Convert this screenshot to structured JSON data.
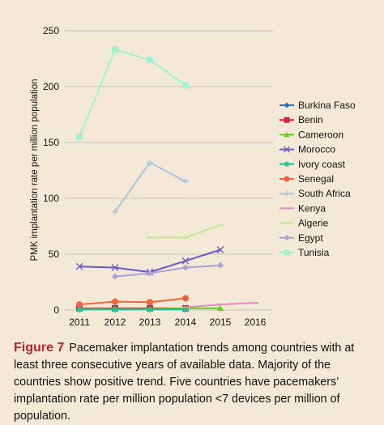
{
  "caption": {
    "label": "Figure 7",
    "text": "Pacemaker implantation trends among countries with at least three consecutive years of available data. Majority of the countries show positive trend. Five countries have pacemakers’ implantation rate per million population <7 devices per million of population."
  },
  "chart_data": {
    "type": "line",
    "title": "",
    "xlabel": "",
    "ylabel": "PMK implantation rate per million population",
    "xlim": [
      2011,
      2016
    ],
    "ylim": [
      0,
      250
    ],
    "x_ticks": [
      "2011",
      "2012",
      "2013",
      "2014",
      "2015",
      "2016"
    ],
    "y_ticks": [
      "0",
      "50",
      "100",
      "150",
      "200",
      "250"
    ],
    "grid": "horizontal",
    "legend_position": "right",
    "series": [
      {
        "name": "Burkina Faso",
        "color": "#2e75c0",
        "marker": "diamond",
        "points": [
          [
            2011,
            1
          ],
          [
            2012,
            1
          ],
          [
            2013,
            1
          ],
          [
            2014,
            1
          ]
        ]
      },
      {
        "name": "Benin",
        "color": "#d11f45",
        "marker": "square",
        "points": [
          [
            2011,
            1.5
          ],
          [
            2012,
            1.5
          ],
          [
            2013,
            1.5
          ],
          [
            2014,
            1.5
          ]
        ]
      },
      {
        "name": "Cameroon",
        "color": "#5fcc1e",
        "marker": "triangle",
        "points": [
          [
            2011,
            1
          ],
          [
            2012,
            1
          ],
          [
            2013,
            1
          ],
          [
            2014,
            1.5
          ],
          [
            2015,
            1.5
          ]
        ]
      },
      {
        "name": "Morocco",
        "color": "#6a55c9",
        "marker": "x",
        "points": [
          [
            2011,
            39
          ],
          [
            2012,
            38
          ],
          [
            2013,
            34
          ],
          [
            2014,
            44
          ],
          [
            2015,
            54
          ]
        ]
      },
      {
        "name": "Ivory coast",
        "color": "#1fbfa0",
        "marker": "star",
        "points": [
          [
            2011,
            0.5
          ],
          [
            2012,
            0.5
          ],
          [
            2013,
            0.5
          ],
          [
            2014,
            0.5
          ]
        ]
      },
      {
        "name": "Senegal",
        "color": "#f0613d",
        "marker": "circle",
        "points": [
          [
            2011,
            5
          ],
          [
            2012,
            7.5
          ],
          [
            2013,
            7
          ],
          [
            2014,
            10.5
          ]
        ]
      },
      {
        "name": "South Africa",
        "color": "#a6c6e3",
        "marker": "plus",
        "points": [
          [
            2012,
            88
          ],
          [
            2013,
            132
          ],
          [
            2014,
            115
          ]
        ]
      },
      {
        "name": "Kenya",
        "color": "#e889c8",
        "marker": "dash",
        "points": [
          [
            2014,
            2.5
          ],
          [
            2015,
            5
          ],
          [
            2016,
            6.5
          ]
        ]
      },
      {
        "name": "Algerie",
        "color": "#c2eb8a",
        "marker": "dash",
        "points": [
          [
            2013,
            65
          ],
          [
            2014,
            65
          ],
          [
            2015,
            76
          ]
        ]
      },
      {
        "name": "Egypt",
        "color": "#a8a3d9",
        "marker": "diamond",
        "points": [
          [
            2012,
            30
          ],
          [
            2013,
            33
          ],
          [
            2014,
            38
          ],
          [
            2015,
            40
          ]
        ]
      },
      {
        "name": "Tunisia",
        "color": "#9ff2d2",
        "marker": "square",
        "points": [
          [
            2011,
            155
          ],
          [
            2012,
            233
          ],
          [
            2013,
            224
          ],
          [
            2014,
            201
          ]
        ]
      }
    ]
  }
}
